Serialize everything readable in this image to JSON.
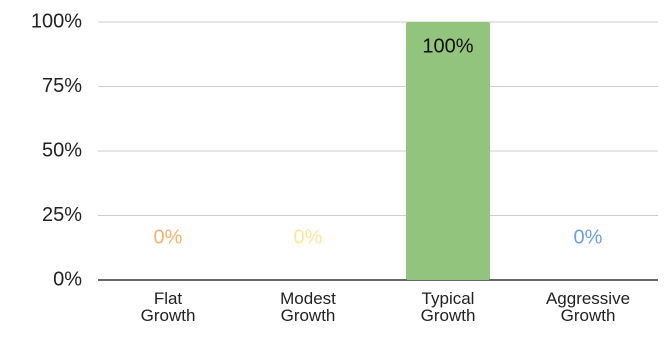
{
  "chart_data": {
    "type": "bar",
    "categories": [
      "Flat Growth",
      "Modest Growth",
      "Typical Growth",
      "Aggressive Growth"
    ],
    "values": [
      0,
      0,
      100,
      0
    ],
    "value_labels": [
      "0%",
      "0%",
      "100%",
      "0%"
    ],
    "colors": [
      "#f6b26b",
      "#ffe599",
      "#93c47d",
      "#6d9eeb"
    ],
    "ylim": [
      0,
      100
    ],
    "yticks": [
      {
        "value": 0,
        "label": "0%"
      },
      {
        "value": 25,
        "label": "25%"
      },
      {
        "value": 50,
        "label": "50%"
      },
      {
        "value": 75,
        "label": "75%"
      },
      {
        "value": 100,
        "label": "100%"
      }
    ],
    "grid": true
  }
}
